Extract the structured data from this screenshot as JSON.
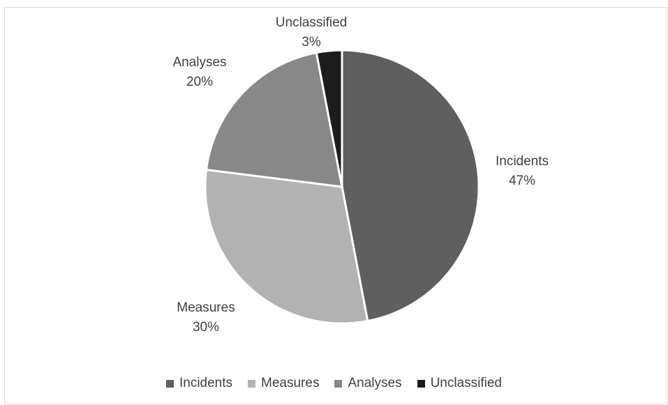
{
  "chart_data": {
    "type": "pie",
    "title": "",
    "categories": [
      "Incidents",
      "Measures",
      "Analyses",
      "Unclassified"
    ],
    "values": [
      47,
      30,
      20,
      3
    ],
    "value_labels": [
      "47%",
      "30%",
      "20%",
      "3%"
    ],
    "colors": [
      "#5f5f5f",
      "#b2b2b2",
      "#888888",
      "#1c1c1c"
    ],
    "start_angle_deg": 0,
    "direction": "clockwise",
    "legend_position": "bottom",
    "slice_separator_color": "#ffffff"
  }
}
